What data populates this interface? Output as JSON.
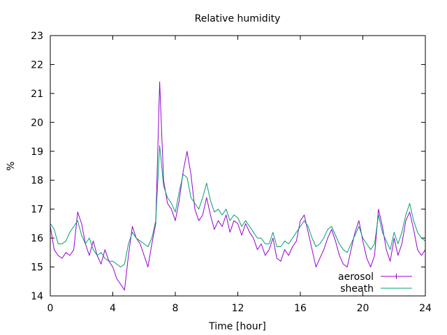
{
  "chart_data": {
    "type": "line",
    "title": "Relative humidity",
    "xlabel": "Time [hour]",
    "ylabel": "%",
    "xlim": [
      0,
      24
    ],
    "ylim": [
      14,
      23
    ],
    "xticks": [
      0,
      4,
      8,
      12,
      16,
      20,
      24
    ],
    "yticks": [
      14,
      15,
      16,
      17,
      18,
      19,
      20,
      21,
      22,
      23
    ],
    "grid": false,
    "legend_position": "bottom-right",
    "series": [
      {
        "name": "aerosol",
        "color": "#9400d3",
        "x": [
          0,
          0.25,
          0.5,
          0.75,
          1,
          1.25,
          1.5,
          1.75,
          2,
          2.25,
          2.5,
          2.75,
          3,
          3.25,
          3.5,
          3.75,
          4,
          4.25,
          4.5,
          4.75,
          5,
          5.25,
          5.5,
          5.75,
          6,
          6.25,
          6.5,
          6.75,
          7,
          7.25,
          7.5,
          7.75,
          8,
          8.25,
          8.5,
          8.75,
          9,
          9.25,
          9.5,
          9.75,
          10,
          10.25,
          10.5,
          10.75,
          11,
          11.25,
          11.5,
          11.75,
          12,
          12.25,
          12.5,
          12.75,
          13,
          13.25,
          13.5,
          13.75,
          14,
          14.25,
          14.5,
          14.75,
          15,
          15.25,
          15.5,
          15.75,
          16,
          16.25,
          16.5,
          16.75,
          17,
          17.25,
          17.5,
          17.75,
          18,
          18.25,
          18.5,
          18.75,
          19,
          19.25,
          19.5,
          19.75,
          20,
          20.25,
          20.5,
          20.75,
          21,
          21.25,
          21.5,
          21.75,
          22,
          22.25,
          22.5,
          22.75,
          23,
          23.25,
          23.5,
          23.75,
          24
        ],
        "values": [
          16.4,
          15.6,
          15.4,
          15.3,
          15.5,
          15.4,
          15.6,
          16.9,
          16.5,
          15.8,
          15.4,
          15.9,
          15.4,
          15.1,
          15.6,
          15.2,
          15.0,
          14.6,
          14.4,
          14.2,
          15.4,
          16.4,
          16.0,
          15.8,
          15.4,
          15.0,
          15.8,
          16.5,
          21.4,
          18.0,
          17.2,
          17.0,
          16.6,
          17.3,
          18.3,
          19.0,
          18.2,
          17.0,
          16.6,
          16.8,
          17.4,
          16.8,
          16.3,
          16.6,
          16.4,
          16.8,
          16.2,
          16.6,
          16.5,
          16.1,
          16.5,
          16.2,
          16.0,
          15.6,
          15.8,
          15.4,
          15.6,
          16.0,
          15.3,
          15.2,
          15.6,
          15.4,
          15.7,
          15.9,
          16.6,
          16.8,
          16.2,
          15.6,
          15.0,
          15.3,
          15.6,
          16.0,
          16.3,
          15.9,
          15.4,
          15.1,
          15.0,
          15.6,
          16.2,
          16.6,
          15.9,
          15.3,
          15.0,
          15.4,
          17.0,
          16.4,
          15.6,
          15.2,
          16.0,
          15.4,
          15.8,
          16.6,
          16.9,
          16.3,
          15.6,
          15.4,
          15.6
        ]
      },
      {
        "name": "sheath",
        "color": "#009e73",
        "x": [
          0,
          0.25,
          0.5,
          0.75,
          1,
          1.25,
          1.5,
          1.75,
          2,
          2.25,
          2.5,
          2.75,
          3,
          3.25,
          3.5,
          3.75,
          4,
          4.25,
          4.5,
          4.75,
          5,
          5.25,
          5.5,
          5.75,
          6,
          6.25,
          6.5,
          6.75,
          7,
          7.25,
          7.5,
          7.75,
          8,
          8.25,
          8.5,
          8.75,
          9,
          9.25,
          9.5,
          9.75,
          10,
          10.25,
          10.5,
          10.75,
          11,
          11.25,
          11.5,
          11.75,
          12,
          12.25,
          12.5,
          12.75,
          13,
          13.25,
          13.5,
          13.75,
          14,
          14.25,
          14.5,
          14.75,
          15,
          15.25,
          15.5,
          15.75,
          16,
          16.25,
          16.5,
          16.75,
          17,
          17.25,
          17.5,
          17.75,
          18,
          18.25,
          18.5,
          18.75,
          19,
          19.25,
          19.5,
          19.75,
          20,
          20.25,
          20.5,
          20.75,
          21,
          21.25,
          21.5,
          21.75,
          22,
          22.25,
          22.5,
          22.75,
          23,
          23.25,
          23.5,
          23.75,
          24
        ],
        "values": [
          16.5,
          16.3,
          15.8,
          15.8,
          15.9,
          16.2,
          16.4,
          16.6,
          16.1,
          15.8,
          16.0,
          15.6,
          15.4,
          15.5,
          15.3,
          15.2,
          15.2,
          15.1,
          15.0,
          15.1,
          15.8,
          16.2,
          16.0,
          15.9,
          15.8,
          15.7,
          16.0,
          16.6,
          19.2,
          17.8,
          17.4,
          17.2,
          16.9,
          17.6,
          18.2,
          18.1,
          17.4,
          17.2,
          17.0,
          17.4,
          17.9,
          17.3,
          16.9,
          17.0,
          16.8,
          17.0,
          16.6,
          16.8,
          16.7,
          16.4,
          16.6,
          16.4,
          16.2,
          16.0,
          16.0,
          15.8,
          15.8,
          16.2,
          15.7,
          15.7,
          15.9,
          15.8,
          16.0,
          16.2,
          16.4,
          16.6,
          16.4,
          16.0,
          15.7,
          15.8,
          16.0,
          16.3,
          16.4,
          16.1,
          15.8,
          15.6,
          15.5,
          15.8,
          16.1,
          16.4,
          16.0,
          15.8,
          15.6,
          15.8,
          16.8,
          16.2,
          15.9,
          15.6,
          16.2,
          15.8,
          16.2,
          16.8,
          17.2,
          16.6,
          16.2,
          16.0,
          15.9
        ]
      }
    ]
  }
}
